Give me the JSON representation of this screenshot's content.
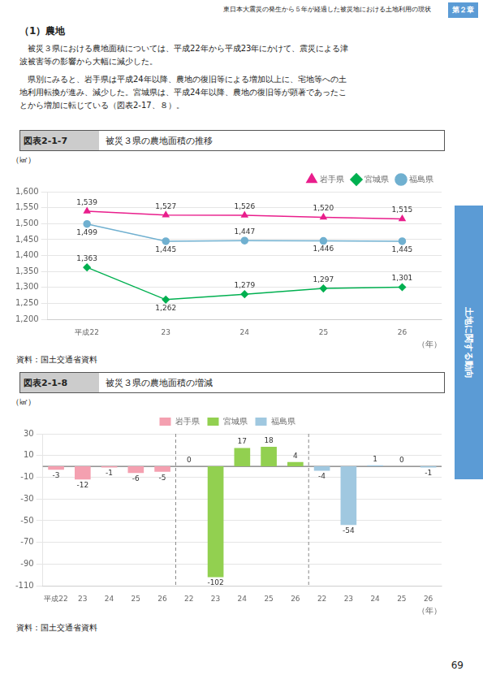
{
  "page_title": "東日本大震災の発生から５年が経過した被災地における土地利用の現状",
  "chapter": "第２章",
  "section_title": "（1）農地",
  "section_text": [
    "　被災３県における農地面積については、平成22年から平成23年にかけて、震災による津\n波被害等の影響から大幅に減少した。",
    "　県別にみると、岩手県は平成24年以降、農地の復旧等による増加以上に、宅地等への土\n地利用転換が進み、減少した。宮城県は、平成24年以降、農地の復旧等が顕著であったこ\nとから増加に転じている（図表2-17、８）。"
  ],
  "sidebar_text": "土地に関する動向",
  "page_number": "69",
  "chart_data": [
    {
      "type": "line",
      "figure_label": "図表2-1-7",
      "title": "被災３県の農地面積の推移",
      "x_label": "（年）",
      "y_label": "（㎢）",
      "source": "資料：国土交通省資料",
      "categories": [
        "平成22",
        "23",
        "24",
        "25",
        "26"
      ],
      "series": [
        {
          "name": "岩手県",
          "color": "#e91e8c",
          "marker": "triangle",
          "values": [
            1539,
            1527,
            1526,
            1520,
            1515
          ],
          "value_labels": [
            "1,539",
            "1,527",
            "1,526",
            "1,520",
            "1,515"
          ]
        },
        {
          "name": "宮城県",
          "color": "#00b050",
          "marker": "diamond",
          "values": [
            1363,
            1262,
            1279,
            1297,
            1301
          ],
          "value_labels": [
            "1,363",
            "1,262",
            "1,279",
            "1,297",
            "1,301"
          ]
        },
        {
          "name": "福島県",
          "color": "#70b0d0",
          "marker": "circle",
          "values": [
            1499,
            1445,
            1447,
            1446,
            1445
          ],
          "value_labels": [
            "1,499",
            "1,445",
            "1,447",
            "1,446",
            "1,445"
          ]
        }
      ],
      "ylim": [
        1200,
        1600
      ],
      "yticks": [
        {
          "value": 1200,
          "label": "1,200"
        },
        {
          "value": 1250,
          "label": "1,250"
        },
        {
          "value": 1300,
          "label": "1,300"
        },
        {
          "value": 1350,
          "label": "1,350"
        },
        {
          "value": 1400,
          "label": "1,400"
        },
        {
          "value": 1450,
          "label": "1,450"
        },
        {
          "value": 1500,
          "label": "1,500"
        },
        {
          "value": 1550,
          "label": "1,550"
        },
        {
          "value": 1600,
          "label": "1,600"
        }
      ],
      "grid": true,
      "legend": "upper right",
      "data_labels": true
    },
    {
      "type": "bar",
      "figure_label": "図表2-1-8",
      "title": "被災３県の農地面積の増減",
      "x_label": "（年）",
      "y_label": "（㎢）",
      "source": "資料：国土交通省資料",
      "categories": [
        "平成22",
        "23",
        "24",
        "25",
        "26",
        "22",
        "23",
        "24",
        "25",
        "26",
        "22",
        "23",
        "24",
        "25",
        "26"
      ],
      "series": [
        {
          "name": "岩手県",
          "color": "#f4a0b0",
          "values": [
            -3,
            -12,
            -1,
            -6,
            -5,
            null,
            null,
            null,
            null,
            null,
            null,
            null,
            null,
            null,
            null
          ]
        },
        {
          "name": "宮城県",
          "color": "#92d050",
          "values": [
            null,
            null,
            null,
            null,
            null,
            0,
            -102,
            17,
            18,
            4,
            null,
            null,
            null,
            null,
            null
          ]
        },
        {
          "name": "福島県",
          "color": "#a0c8e0",
          "values": [
            null,
            null,
            null,
            null,
            null,
            null,
            null,
            null,
            null,
            null,
            -4,
            -54,
            1,
            0,
            -1
          ]
        }
      ],
      "ylim": [
        -110,
        30
      ],
      "yticks": [
        -110,
        -90,
        -70,
        -50,
        -30,
        -10,
        10,
        30
      ],
      "grid": true,
      "legend": "upper center",
      "data_labels": true
    }
  ]
}
